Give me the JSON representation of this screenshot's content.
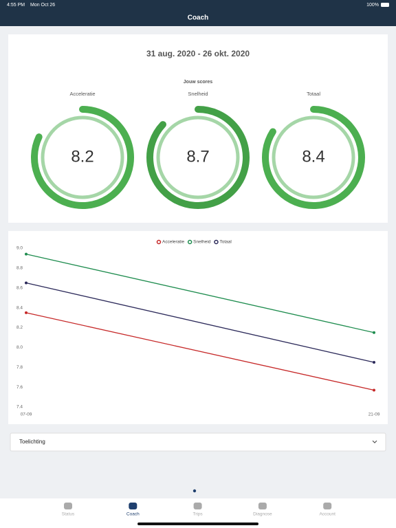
{
  "status_bar": {
    "time": "4:55 PM",
    "date": "Mon Oct 26",
    "battery": "100%"
  },
  "nav": {
    "title": "Coach"
  },
  "scores_card": {
    "period": "31 aug. 2020 - 26 okt. 2020",
    "heading": "Jouw scores",
    "range": [
      0,
      10
    ],
    "scores": [
      {
        "label": "Acceleratie",
        "value": 8.2,
        "color": "#4caf50"
      },
      {
        "label": "Snelheid",
        "value": 8.7,
        "color": "#43a047"
      },
      {
        "label": "Totaal",
        "value": 8.4,
        "color": "#4caf50"
      }
    ]
  },
  "chart_data": {
    "type": "line",
    "categories": [
      "07-09",
      "21-09"
    ],
    "series": [
      {
        "name": "Acceleratie",
        "color": "#c62828",
        "values": [
          8.35,
          7.57
        ]
      },
      {
        "name": "Snelheid",
        "color": "#1e8c4e",
        "values": [
          8.94,
          8.15
        ]
      },
      {
        "name": "Totaal",
        "color": "#2c2a5a",
        "values": [
          8.65,
          7.85
        ]
      }
    ],
    "ylim": [
      7.4,
      9.0
    ],
    "yticks": [
      7.4,
      7.6,
      7.8,
      {
        "value": 8.0,
        "label": "8.0"
      },
      8.2,
      8.4,
      8.6,
      8.8,
      {
        "value": 9.0,
        "label": "9.0"
      }
    ],
    "legend": "top"
  },
  "explanation": {
    "title": "Toelichting"
  },
  "tab_bar": {
    "tabs": [
      "Status",
      "Coach",
      "Trips",
      "Diagnose",
      "Account"
    ],
    "active": 1
  }
}
